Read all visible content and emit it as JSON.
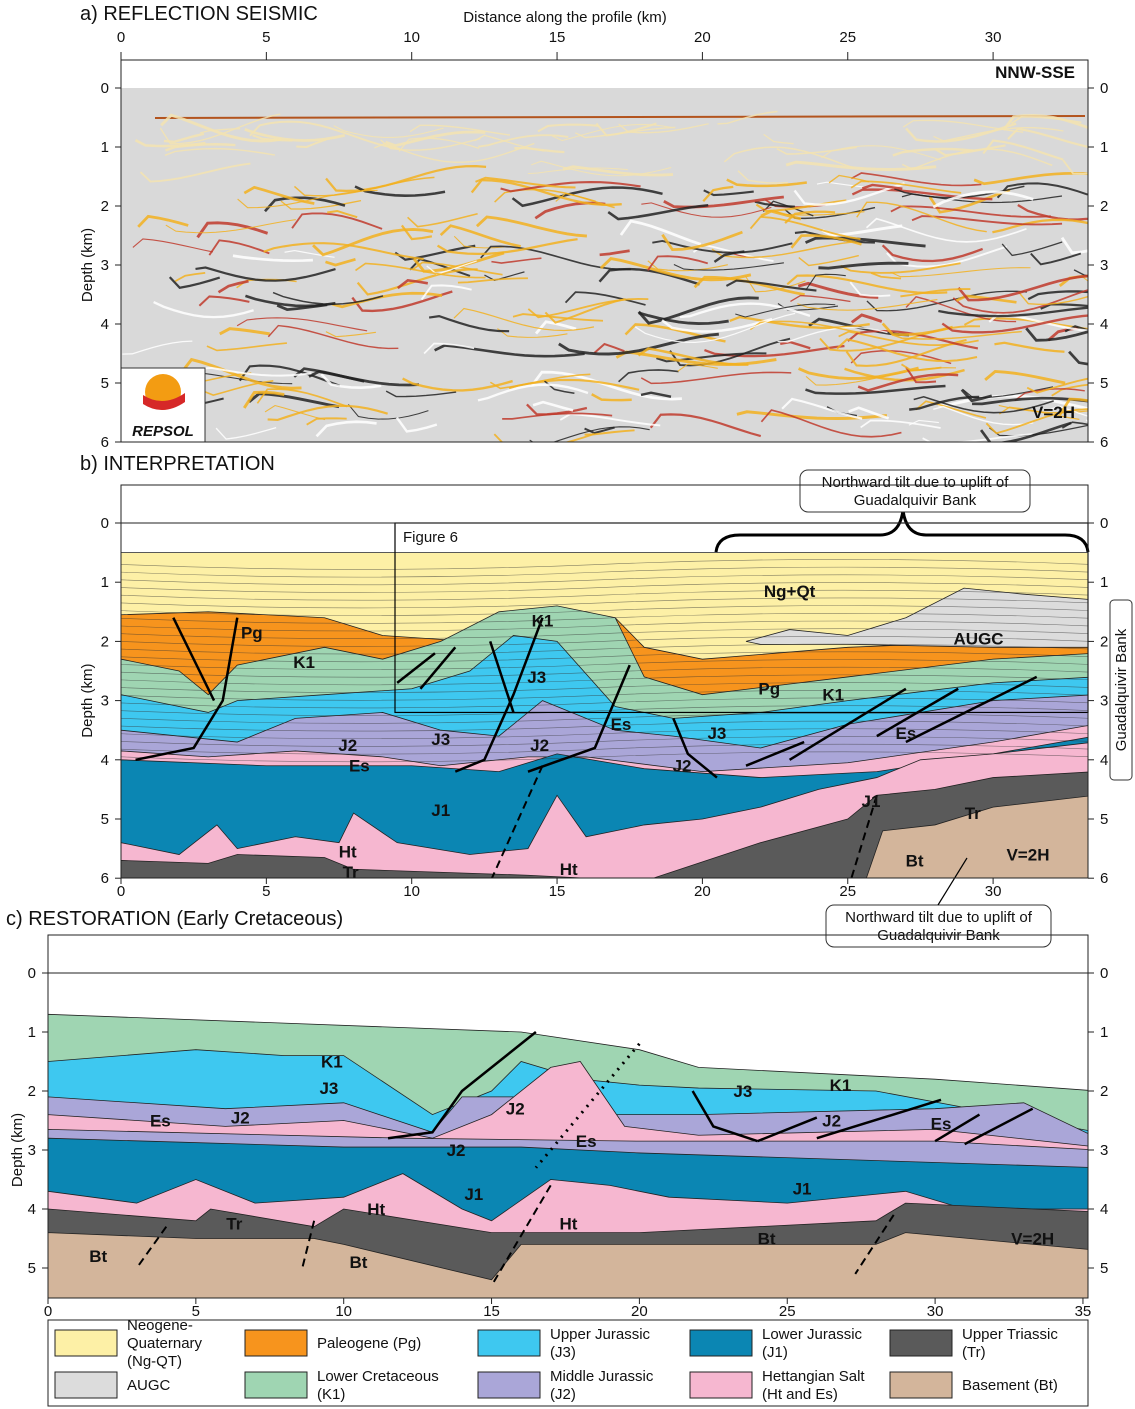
{
  "panels": [
    {
      "title": "a) REFLECTION SEISMIC",
      "x_label": "Distance along the profile (km)",
      "y_label": "Depth (km)",
      "xticks": [
        0,
        5,
        10,
        15,
        20,
        25,
        30
      ],
      "yticks": [
        0,
        1,
        2,
        3,
        4,
        5,
        6
      ],
      "labels": [
        "NNW-SSE",
        "V=2H"
      ],
      "logo": "REPSOL"
    },
    {
      "title": "b) INTERPRETATION",
      "y_label": "Depth (km)",
      "xticks": [
        0,
        5,
        10,
        15,
        20,
        25,
        30
      ],
      "yticks": [
        0,
        1,
        2,
        3,
        4,
        5,
        6
      ],
      "labels": [
        "Ng+Qt",
        "AUGC",
        "Pg",
        "Pg",
        "K1",
        "K1",
        "K1",
        "J3",
        "J3",
        "J3",
        "J2",
        "J2",
        "J2",
        "Es",
        "Es",
        "Es",
        "J1",
        "J1",
        "Ht",
        "Ht",
        "Tr",
        "Tr",
        "Bt",
        "V=2H"
      ],
      "box_label": "Figure 6",
      "callouts": [
        [
          "Northward tilt due to uplift of",
          "Guadalquivir Bank"
        ],
        [
          "Northward tilt due to uplift of",
          "Guadalquivir Bank"
        ]
      ],
      "side_label": "Guadalquivir Bank"
    },
    {
      "title": "c) RESTORATION (Early Cretaceous)",
      "y_label": "Depth (km)",
      "xticks": [
        0,
        5,
        10,
        15,
        20,
        25,
        30,
        35
      ],
      "yticks": [
        0,
        1,
        2,
        3,
        4,
        5
      ],
      "labels": [
        "K1",
        "K1",
        "J3",
        "J3",
        "J2",
        "J2",
        "J2",
        "J2",
        "Es",
        "Es",
        "Es",
        "J1",
        "J1",
        "Ht",
        "Ht",
        "Tr",
        "Bt",
        "Bt",
        "Bt",
        "V=2H"
      ]
    }
  ],
  "legend": [
    {
      "label": [
        "Neogene-",
        "Quaternary",
        "(Ng-QT)"
      ],
      "color": "#fdf0a6"
    },
    {
      "label": [
        "AUGC"
      ],
      "color": "#dcdcdc"
    },
    {
      "label": [
        "Paleogene (Pg)"
      ],
      "color": "#f7941d"
    },
    {
      "label": [
        "Lower Cretaceous",
        "(K1)"
      ],
      "color": "#9fd5b2"
    },
    {
      "label": [
        "Upper Jurassic",
        "(J3)"
      ],
      "color": "#3ec8f0"
    },
    {
      "label": [
        "Middle Jurassic",
        "(J2)"
      ],
      "color": "#aaa6d8"
    },
    {
      "label": [
        "Lower Jurassic",
        "(J1)"
      ],
      "color": "#0b86b3"
    },
    {
      "label": [
        "Hettangian Salt",
        "(Ht and Es)"
      ],
      "color": "#f6b7d0"
    },
    {
      "label": [
        "Upper Triassic",
        "(Tr)"
      ],
      "color": "#5a5a5a"
    },
    {
      "label": [
        "Basement (Bt)"
      ],
      "color": "#d3b59b"
    }
  ]
}
